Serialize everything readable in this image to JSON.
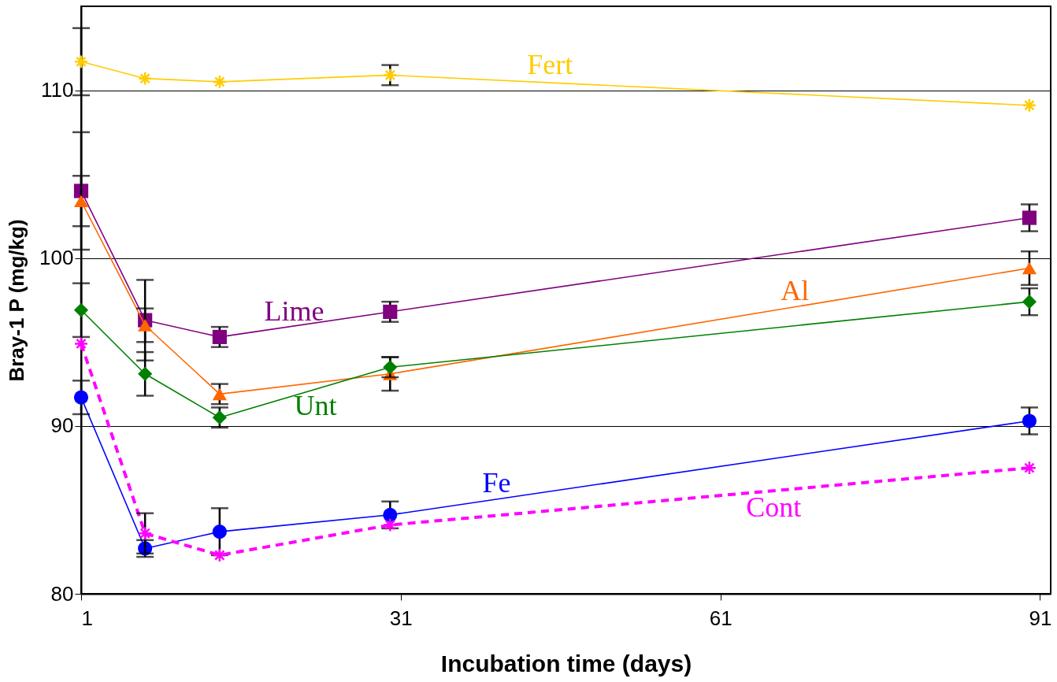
{
  "chart_data": {
    "type": "line",
    "xlabel": "Incubation time (days)",
    "ylabel": "Bray-1 P (mg/kg)",
    "x": [
      1,
      7,
      14,
      30,
      90
    ],
    "xlim": [
      1,
      92
    ],
    "xticks": [
      1,
      31,
      61,
      91
    ],
    "ylim": [
      80,
      115
    ],
    "yticks": [
      80,
      90,
      100,
      110
    ],
    "grid": "y",
    "series": [
      {
        "name": "Fert",
        "color": "#ffcc00",
        "marker": "cross",
        "line_style": "solid",
        "values": [
          111.7,
          110.7,
          110.5,
          110.9,
          109.1
        ],
        "errors": [
          2.0,
          null,
          null,
          0.6,
          null
        ]
      },
      {
        "name": "Lime",
        "color": "#800080",
        "marker": "square",
        "line_style": "solid",
        "values": [
          104.0,
          96.3,
          95.3,
          96.8,
          102.4
        ],
        "errors": [
          3.5,
          2.4,
          0.6,
          0.6,
          0.8
        ]
      },
      {
        "name": "Al",
        "color": "#ff6600",
        "marker": "triangle",
        "line_style": "solid",
        "values": [
          103.4,
          96.0,
          91.9,
          93.1,
          99.4
        ],
        "errors": [
          1.5,
          1.0,
          0.6,
          1.0,
          1.0
        ]
      },
      {
        "name": "Unt",
        "color": "#008000",
        "marker": "diamond",
        "line_style": "solid",
        "values": [
          96.9,
          93.1,
          90.5,
          93.5,
          97.4
        ],
        "errors": [
          1.6,
          1.3,
          0.6,
          0.6,
          0.8
        ]
      },
      {
        "name": "Fe",
        "color": "#0000ff",
        "marker": "circle",
        "line_style": "solid",
        "values": [
          91.7,
          82.7,
          83.7,
          84.7,
          90.3
        ],
        "errors": [
          1.0,
          0.5,
          1.4,
          0.8,
          0.8
        ]
      },
      {
        "name": "Cont",
        "color": "#ff00ff",
        "marker": "cross",
        "line_style": "dashed",
        "values": [
          94.9,
          83.6,
          82.3,
          84.1,
          87.5
        ],
        "errors": [
          null,
          1.2,
          null,
          null,
          null
        ]
      }
    ]
  }
}
